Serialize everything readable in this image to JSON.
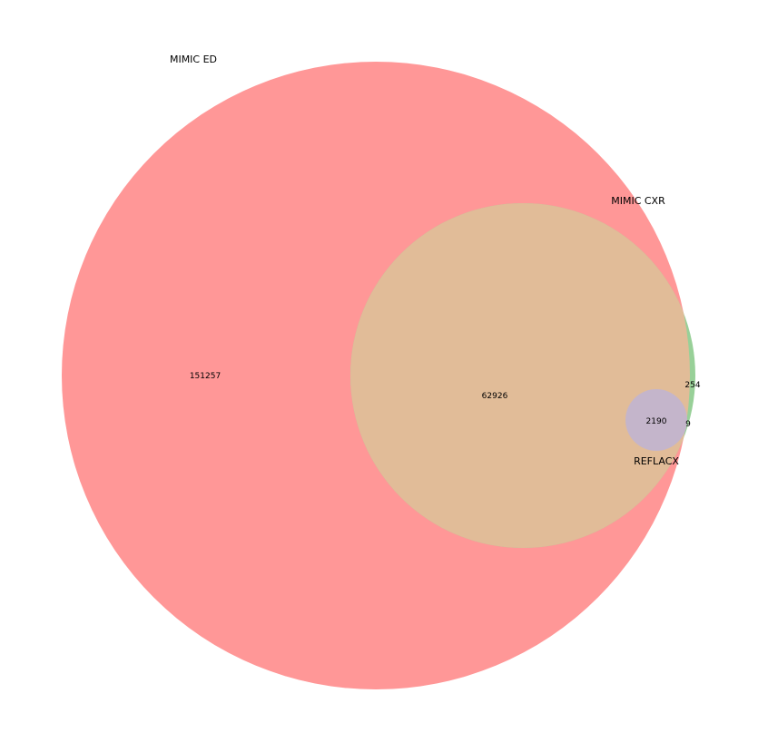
{
  "diagram": {
    "type": "venn3",
    "sets": [
      {
        "name": "MIMIC ED",
        "color": "#ff9797"
      },
      {
        "name": "MIMIC CXR",
        "color": "#98d098"
      },
      {
        "name": "REFLACX",
        "color": "#c4b5cb"
      }
    ],
    "overlap_colors": {
      "ed_cxr": "#e1bc98"
    },
    "regions": {
      "ed_only": "151257",
      "ed_cxr": "62926",
      "cxr_only": "254",
      "ed_cxr_reflacx": "2190",
      "cxr_reflacx": "9"
    }
  }
}
